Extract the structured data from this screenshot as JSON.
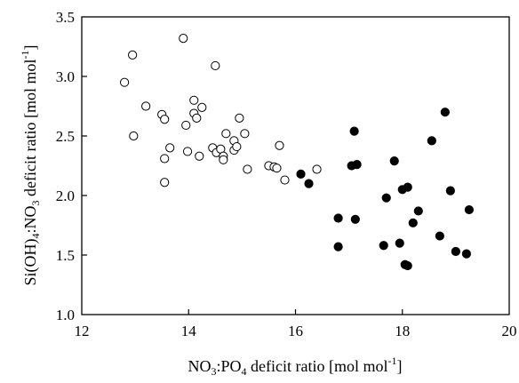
{
  "chart_data": {
    "type": "scatter",
    "xlabel": {
      "pre": "NO",
      "s1": "3",
      "mid": ":PO",
      "s2": "4",
      "post": " deficit ratio [mol mol",
      "sup": "-1",
      "end": "]"
    },
    "ylabel": {
      "pre": "Si(OH)",
      "s1": "4",
      "mid": ":NO",
      "s2": "3",
      "post": " deficit ratio [mol mol",
      "sup": "-1",
      "end": "]"
    },
    "xlim": [
      12,
      20
    ],
    "ylim": [
      1.0,
      3.5
    ],
    "x_ticks": [
      12,
      14,
      16,
      18,
      20
    ],
    "y_ticks": [
      1.0,
      1.5,
      2.0,
      2.5,
      3.0,
      3.5
    ],
    "x_tick_labels": [
      "12",
      "14",
      "16",
      "18",
      "20"
    ],
    "y_tick_labels": [
      "1.0",
      "1.5",
      "2.0",
      "2.5",
      "3.0",
      "3.5"
    ],
    "grid": false,
    "series": [
      {
        "marker": "open-circle",
        "color": "#000000",
        "points": [
          [
            12.8,
            2.95
          ],
          [
            12.95,
            3.18
          ],
          [
            12.97,
            2.5
          ],
          [
            13.2,
            2.75
          ],
          [
            13.5,
            2.68
          ],
          [
            13.55,
            2.64
          ],
          [
            13.55,
            2.31
          ],
          [
            13.55,
            2.11
          ],
          [
            13.65,
            2.4
          ],
          [
            13.9,
            3.32
          ],
          [
            13.95,
            2.59
          ],
          [
            13.98,
            2.37
          ],
          [
            14.1,
            2.8
          ],
          [
            14.1,
            2.69
          ],
          [
            14.15,
            2.65
          ],
          [
            14.2,
            2.33
          ],
          [
            14.25,
            2.74
          ],
          [
            14.45,
            2.4
          ],
          [
            14.5,
            3.09
          ],
          [
            14.52,
            2.36
          ],
          [
            14.6,
            2.39
          ],
          [
            14.65,
            2.33
          ],
          [
            14.65,
            2.3
          ],
          [
            14.7,
            2.52
          ],
          [
            14.85,
            2.46
          ],
          [
            14.85,
            2.38
          ],
          [
            14.9,
            2.41
          ],
          [
            14.95,
            2.65
          ],
          [
            15.05,
            2.52
          ],
          [
            15.1,
            2.22
          ],
          [
            15.5,
            2.25
          ],
          [
            15.6,
            2.24
          ],
          [
            15.65,
            2.23
          ],
          [
            15.7,
            2.42
          ],
          [
            15.8,
            2.13
          ],
          [
            16.4,
            2.22
          ]
        ]
      },
      {
        "marker": "filled-circle",
        "color": "#000000",
        "points": [
          [
            16.1,
            2.18
          ],
          [
            16.25,
            2.1
          ],
          [
            16.8,
            1.81
          ],
          [
            16.8,
            1.57
          ],
          [
            17.05,
            2.25
          ],
          [
            17.1,
            2.54
          ],
          [
            17.15,
            2.26
          ],
          [
            17.12,
            1.8
          ],
          [
            17.65,
            1.58
          ],
          [
            17.7,
            1.98
          ],
          [
            17.85,
            2.29
          ],
          [
            17.95,
            1.6
          ],
          [
            18.0,
            2.05
          ],
          [
            18.05,
            1.42
          ],
          [
            18.1,
            2.07
          ],
          [
            18.1,
            1.41
          ],
          [
            18.2,
            1.77
          ],
          [
            18.3,
            1.87
          ],
          [
            18.55,
            2.46
          ],
          [
            18.7,
            1.66
          ],
          [
            18.8,
            2.7
          ],
          [
            18.9,
            2.04
          ],
          [
            19.0,
            1.53
          ],
          [
            19.2,
            1.51
          ],
          [
            19.25,
            1.88
          ]
        ]
      }
    ]
  }
}
